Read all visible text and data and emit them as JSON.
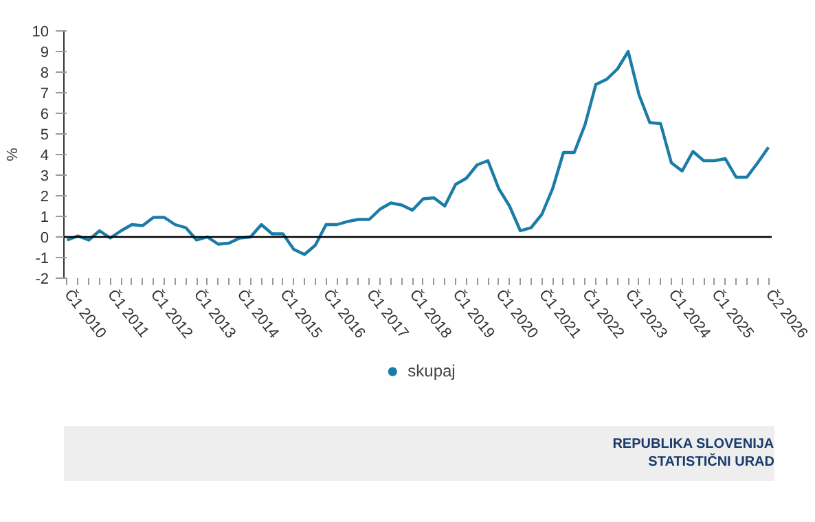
{
  "chart_data": {
    "type": "line",
    "ylabel": "%",
    "categories": [
      "Č1 2010",
      null,
      null,
      null,
      "Č1 2011",
      null,
      null,
      null,
      "Č1 2012",
      null,
      null,
      null,
      "Č1 2013",
      null,
      null,
      null,
      "Č1 2014",
      null,
      null,
      null,
      "Č1 2015",
      null,
      null,
      null,
      "Č1 2016",
      null,
      null,
      null,
      "Č1 2017",
      null,
      null,
      null,
      "Č1 2018",
      null,
      null,
      null,
      "Č1 2019",
      null,
      null,
      null,
      "Č1 2020",
      null,
      null,
      null,
      "Č1 2021",
      null,
      null,
      null,
      "Č1 2022",
      null,
      null,
      null,
      "Č1 2023",
      null,
      null,
      null,
      "Č1 2024",
      null,
      null,
      null,
      "Č1 2025",
      null,
      null,
      null,
      null,
      "Č2 2026"
    ],
    "series": [
      {
        "name": "skupaj",
        "color": "#1b7ca8",
        "values": [
          -0.15,
          0.05,
          -0.15,
          0.3,
          -0.05,
          0.3,
          0.6,
          0.55,
          0.95,
          0.95,
          0.6,
          0.45,
          -0.15,
          0.0,
          -0.35,
          -0.3,
          -0.05,
          0.0,
          0.6,
          0.15,
          0.15,
          -0.6,
          -0.85,
          -0.4,
          0.6,
          0.6,
          0.75,
          0.85,
          0.85,
          1.35,
          1.65,
          1.55,
          1.3,
          1.85,
          1.9,
          1.5,
          2.55,
          2.85,
          3.5,
          3.7,
          2.35,
          1.5,
          0.3,
          0.45,
          1.1,
          2.35,
          4.1,
          4.1,
          5.45,
          7.4,
          7.65,
          8.15,
          9.0,
          6.9,
          5.55,
          5.5,
          3.6,
          3.2,
          4.15,
          3.7,
          3.7,
          3.8,
          2.9,
          2.9,
          3.6,
          4.35
        ]
      }
    ],
    "ylim": [
      -2,
      10
    ],
    "yticks": [
      -2,
      -1,
      0,
      1,
      2,
      3,
      4,
      5,
      6,
      7,
      8,
      9,
      10
    ],
    "ref_lines": [
      {
        "axis": "y",
        "value": 0,
        "color": "#000000"
      }
    ],
    "grid": false,
    "legend": "bottom",
    "annotations": [
      "REPUBLIKA SLOVENIJA",
      "STATISTIČNI URAD"
    ]
  }
}
